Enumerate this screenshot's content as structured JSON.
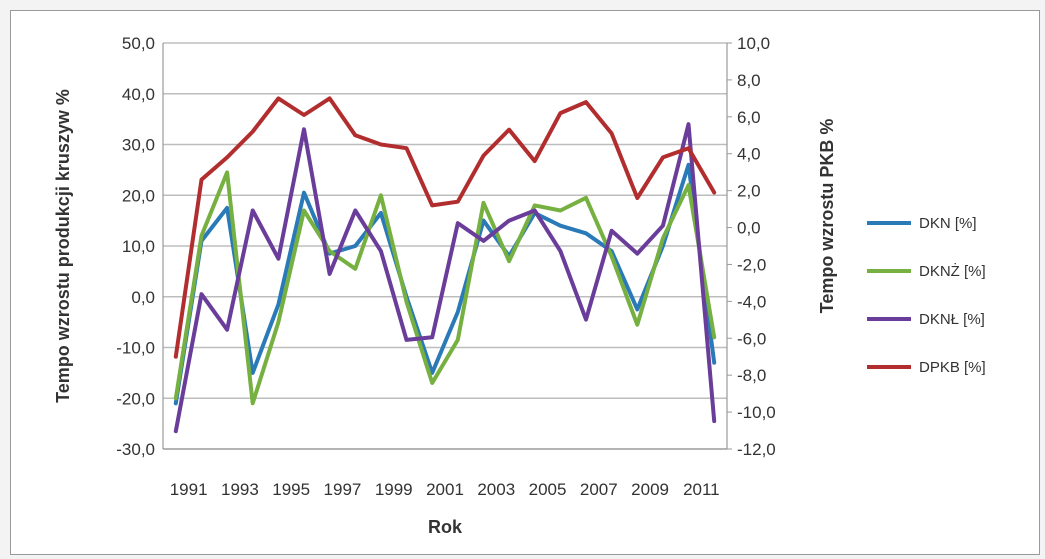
{
  "chart_data": {
    "type": "line",
    "title": "",
    "xlabel": "Rok",
    "ylabel_left": "Tempo wzrostu produkcji kruszyw %",
    "ylabel_right": "Tempo wzrostu PKB %",
    "x": [
      1991,
      1992,
      1993,
      1994,
      1995,
      1996,
      1997,
      1998,
      1999,
      2000,
      2001,
      2002,
      2003,
      2004,
      2005,
      2006,
      2007,
      2008,
      2009,
      2010,
      2011,
      2012
    ],
    "x_tick_labels": [
      "1991",
      "1993",
      "1995",
      "1997",
      "1999",
      "2001",
      "2003",
      "2005",
      "2007",
      "2009",
      "2011"
    ],
    "ylim_left": [
      -30,
      50
    ],
    "ylim_right": [
      -12,
      10
    ],
    "y_ticks_left": [
      "50,0",
      "40,0",
      "30,0",
      "20,0",
      "10,0",
      "0,0",
      "-10,0",
      "-20,0",
      "-30,0"
    ],
    "y_ticks_right": [
      "10,0",
      "8,0",
      "6,0",
      "4,0",
      "2,0",
      "0,0",
      "-2,0",
      "-4,0",
      "-6,0",
      "-8,0",
      "-10,0",
      "-12,0"
    ],
    "grid": true,
    "legend_position": "right",
    "series": [
      {
        "name": "DKN [%]",
        "axis": "left",
        "color": "#2a7ab8",
        "values": [
          -21,
          11,
          17.5,
          -15,
          -1.5,
          20.5,
          8.5,
          10,
          16.5,
          0,
          -15,
          -3,
          15,
          8,
          16.5,
          14,
          12.5,
          9,
          -2.5,
          10,
          26,
          -13
        ]
      },
      {
        "name": "DKNŻ [%]",
        "axis": "left",
        "color": "#76b041",
        "values": [
          -20,
          12,
          24.5,
          -21,
          -5,
          17,
          9,
          5.5,
          20,
          -1,
          -17,
          -8.5,
          18.5,
          7,
          18,
          17,
          19.5,
          8,
          -5.5,
          11.5,
          22,
          -8
        ]
      },
      {
        "name": "DKNŁ [%]",
        "axis": "left",
        "color": "#6a3d9a",
        "values": [
          -26.5,
          0.5,
          -6.5,
          17,
          7.5,
          33,
          4.5,
          17,
          9,
          -8.5,
          -8,
          14.5,
          11,
          15,
          17,
          9,
          -4.5,
          13,
          8.5,
          14,
          34,
          -24.5
        ]
      },
      {
        "name": "DPKB [%]",
        "axis": "right",
        "color": "#b22d2e",
        "values": [
          -7,
          2.6,
          3.8,
          5.2,
          7,
          6.1,
          7,
          5,
          4.5,
          4.3,
          1.2,
          1.4,
          3.9,
          5.3,
          3.6,
          6.2,
          6.8,
          5.1,
          1.6,
          3.8,
          4.3,
          1.9
        ]
      }
    ]
  }
}
